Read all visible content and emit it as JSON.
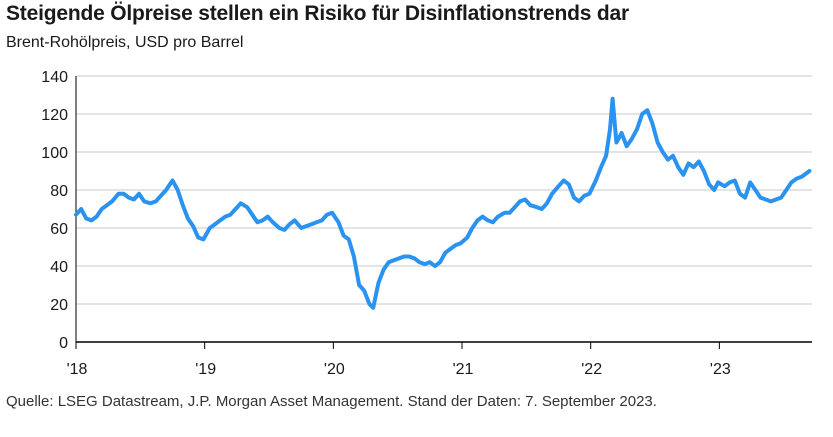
{
  "title": "Steigende Ölpreise stellen ein Risiko für Disinflationstrends dar",
  "subtitle": "Brent-Rohölpreis, USD pro Barrel",
  "source": "Quelle: LSEG Datastream, J.P. Morgan Asset Management. Stand der Daten: 7. September 2023.",
  "colors": {
    "line": "#2a93f0",
    "grid": "#c8c8c8",
    "axis": "#000000"
  },
  "chart_data": {
    "type": "line",
    "title": "Steigende Ölpreise stellen ein Risiko für Disinflationstrends dar",
    "ylabel": "",
    "xlabel": "",
    "ylim": [
      0,
      140
    ],
    "xlim": [
      2018.0,
      2023.72
    ],
    "y_ticks": [
      0,
      20,
      40,
      60,
      80,
      100,
      120,
      140
    ],
    "x_ticks": [
      {
        "value": 2018,
        "label": "'18"
      },
      {
        "value": 2019,
        "label": "'19"
      },
      {
        "value": 2020,
        "label": "'20"
      },
      {
        "value": 2021,
        "label": "'21"
      },
      {
        "value": 2022,
        "label": "'22"
      },
      {
        "value": 2023,
        "label": "'23"
      }
    ],
    "grid": true,
    "series": [
      {
        "values": [
          [
            2018.0,
            67
          ],
          [
            2018.04,
            70
          ],
          [
            2018.08,
            65
          ],
          [
            2018.12,
            64
          ],
          [
            2018.16,
            66
          ],
          [
            2018.2,
            70
          ],
          [
            2018.24,
            72
          ],
          [
            2018.28,
            74
          ],
          [
            2018.33,
            78
          ],
          [
            2018.37,
            78
          ],
          [
            2018.41,
            76
          ],
          [
            2018.45,
            75
          ],
          [
            2018.49,
            78
          ],
          [
            2018.53,
            74
          ],
          [
            2018.58,
            73
          ],
          [
            2018.62,
            74
          ],
          [
            2018.66,
            77
          ],
          [
            2018.7,
            80
          ],
          [
            2018.75,
            85
          ],
          [
            2018.79,
            80
          ],
          [
            2018.83,
            72
          ],
          [
            2018.87,
            65
          ],
          [
            2018.91,
            61
          ],
          [
            2018.95,
            55
          ],
          [
            2018.99,
            54
          ],
          [
            2019.04,
            60
          ],
          [
            2019.08,
            62
          ],
          [
            2019.12,
            64
          ],
          [
            2019.16,
            66
          ],
          [
            2019.2,
            67
          ],
          [
            2019.24,
            70
          ],
          [
            2019.28,
            73
          ],
          [
            2019.33,
            71
          ],
          [
            2019.37,
            67
          ],
          [
            2019.41,
            63
          ],
          [
            2019.45,
            64
          ],
          [
            2019.49,
            66
          ],
          [
            2019.53,
            63
          ],
          [
            2019.58,
            60
          ],
          [
            2019.62,
            59
          ],
          [
            2019.66,
            62
          ],
          [
            2019.7,
            64
          ],
          [
            2019.75,
            60
          ],
          [
            2019.79,
            61
          ],
          [
            2019.83,
            62
          ],
          [
            2019.87,
            63
          ],
          [
            2019.91,
            64
          ],
          [
            2019.95,
            67
          ],
          [
            2019.99,
            68
          ],
          [
            2020.04,
            63
          ],
          [
            2020.08,
            56
          ],
          [
            2020.12,
            54
          ],
          [
            2020.16,
            45
          ],
          [
            2020.2,
            30
          ],
          [
            2020.24,
            27
          ],
          [
            2020.28,
            20
          ],
          [
            2020.31,
            18
          ],
          [
            2020.35,
            31
          ],
          [
            2020.39,
            38
          ],
          [
            2020.43,
            42
          ],
          [
            2020.47,
            43
          ],
          [
            2020.51,
            44
          ],
          [
            2020.55,
            45
          ],
          [
            2020.59,
            45
          ],
          [
            2020.63,
            44
          ],
          [
            2020.67,
            42
          ],
          [
            2020.71,
            41
          ],
          [
            2020.75,
            42
          ],
          [
            2020.79,
            40
          ],
          [
            2020.83,
            42
          ],
          [
            2020.87,
            47
          ],
          [
            2020.91,
            49
          ],
          [
            2020.95,
            51
          ],
          [
            2020.99,
            52
          ],
          [
            2021.04,
            55
          ],
          [
            2021.08,
            60
          ],
          [
            2021.12,
            64
          ],
          [
            2021.16,
            66
          ],
          [
            2021.2,
            64
          ],
          [
            2021.24,
            63
          ],
          [
            2021.28,
            66
          ],
          [
            2021.33,
            68
          ],
          [
            2021.37,
            68
          ],
          [
            2021.41,
            71
          ],
          [
            2021.45,
            74
          ],
          [
            2021.49,
            75
          ],
          [
            2021.53,
            72
          ],
          [
            2021.58,
            71
          ],
          [
            2021.62,
            70
          ],
          [
            2021.66,
            73
          ],
          [
            2021.7,
            78
          ],
          [
            2021.75,
            82
          ],
          [
            2021.79,
            85
          ],
          [
            2021.83,
            83
          ],
          [
            2021.87,
            76
          ],
          [
            2021.91,
            74
          ],
          [
            2021.95,
            77
          ],
          [
            2021.99,
            78
          ],
          [
            2022.04,
            85
          ],
          [
            2022.08,
            92
          ],
          [
            2022.12,
            98
          ],
          [
            2022.15,
            112
          ],
          [
            2022.17,
            128
          ],
          [
            2022.2,
            105
          ],
          [
            2022.24,
            110
          ],
          [
            2022.28,
            103
          ],
          [
            2022.32,
            107
          ],
          [
            2022.36,
            112
          ],
          [
            2022.4,
            120
          ],
          [
            2022.44,
            122
          ],
          [
            2022.48,
            115
          ],
          [
            2022.52,
            105
          ],
          [
            2022.56,
            100
          ],
          [
            2022.6,
            96
          ],
          [
            2022.64,
            98
          ],
          [
            2022.68,
            92
          ],
          [
            2022.72,
            88
          ],
          [
            2022.76,
            94
          ],
          [
            2022.8,
            92
          ],
          [
            2022.84,
            95
          ],
          [
            2022.88,
            90
          ],
          [
            2022.92,
            83
          ],
          [
            2022.96,
            80
          ],
          [
            2022.99,
            84
          ],
          [
            2023.04,
            82
          ],
          [
            2023.08,
            84
          ],
          [
            2023.12,
            85
          ],
          [
            2023.16,
            78
          ],
          [
            2023.2,
            76
          ],
          [
            2023.24,
            84
          ],
          [
            2023.28,
            80
          ],
          [
            2023.32,
            76
          ],
          [
            2023.36,
            75
          ],
          [
            2023.4,
            74
          ],
          [
            2023.44,
            75
          ],
          [
            2023.48,
            76
          ],
          [
            2023.52,
            80
          ],
          [
            2023.56,
            84
          ],
          [
            2023.6,
            86
          ],
          [
            2023.64,
            87
          ],
          [
            2023.68,
            89
          ],
          [
            2023.7,
            90
          ]
        ]
      }
    ]
  }
}
